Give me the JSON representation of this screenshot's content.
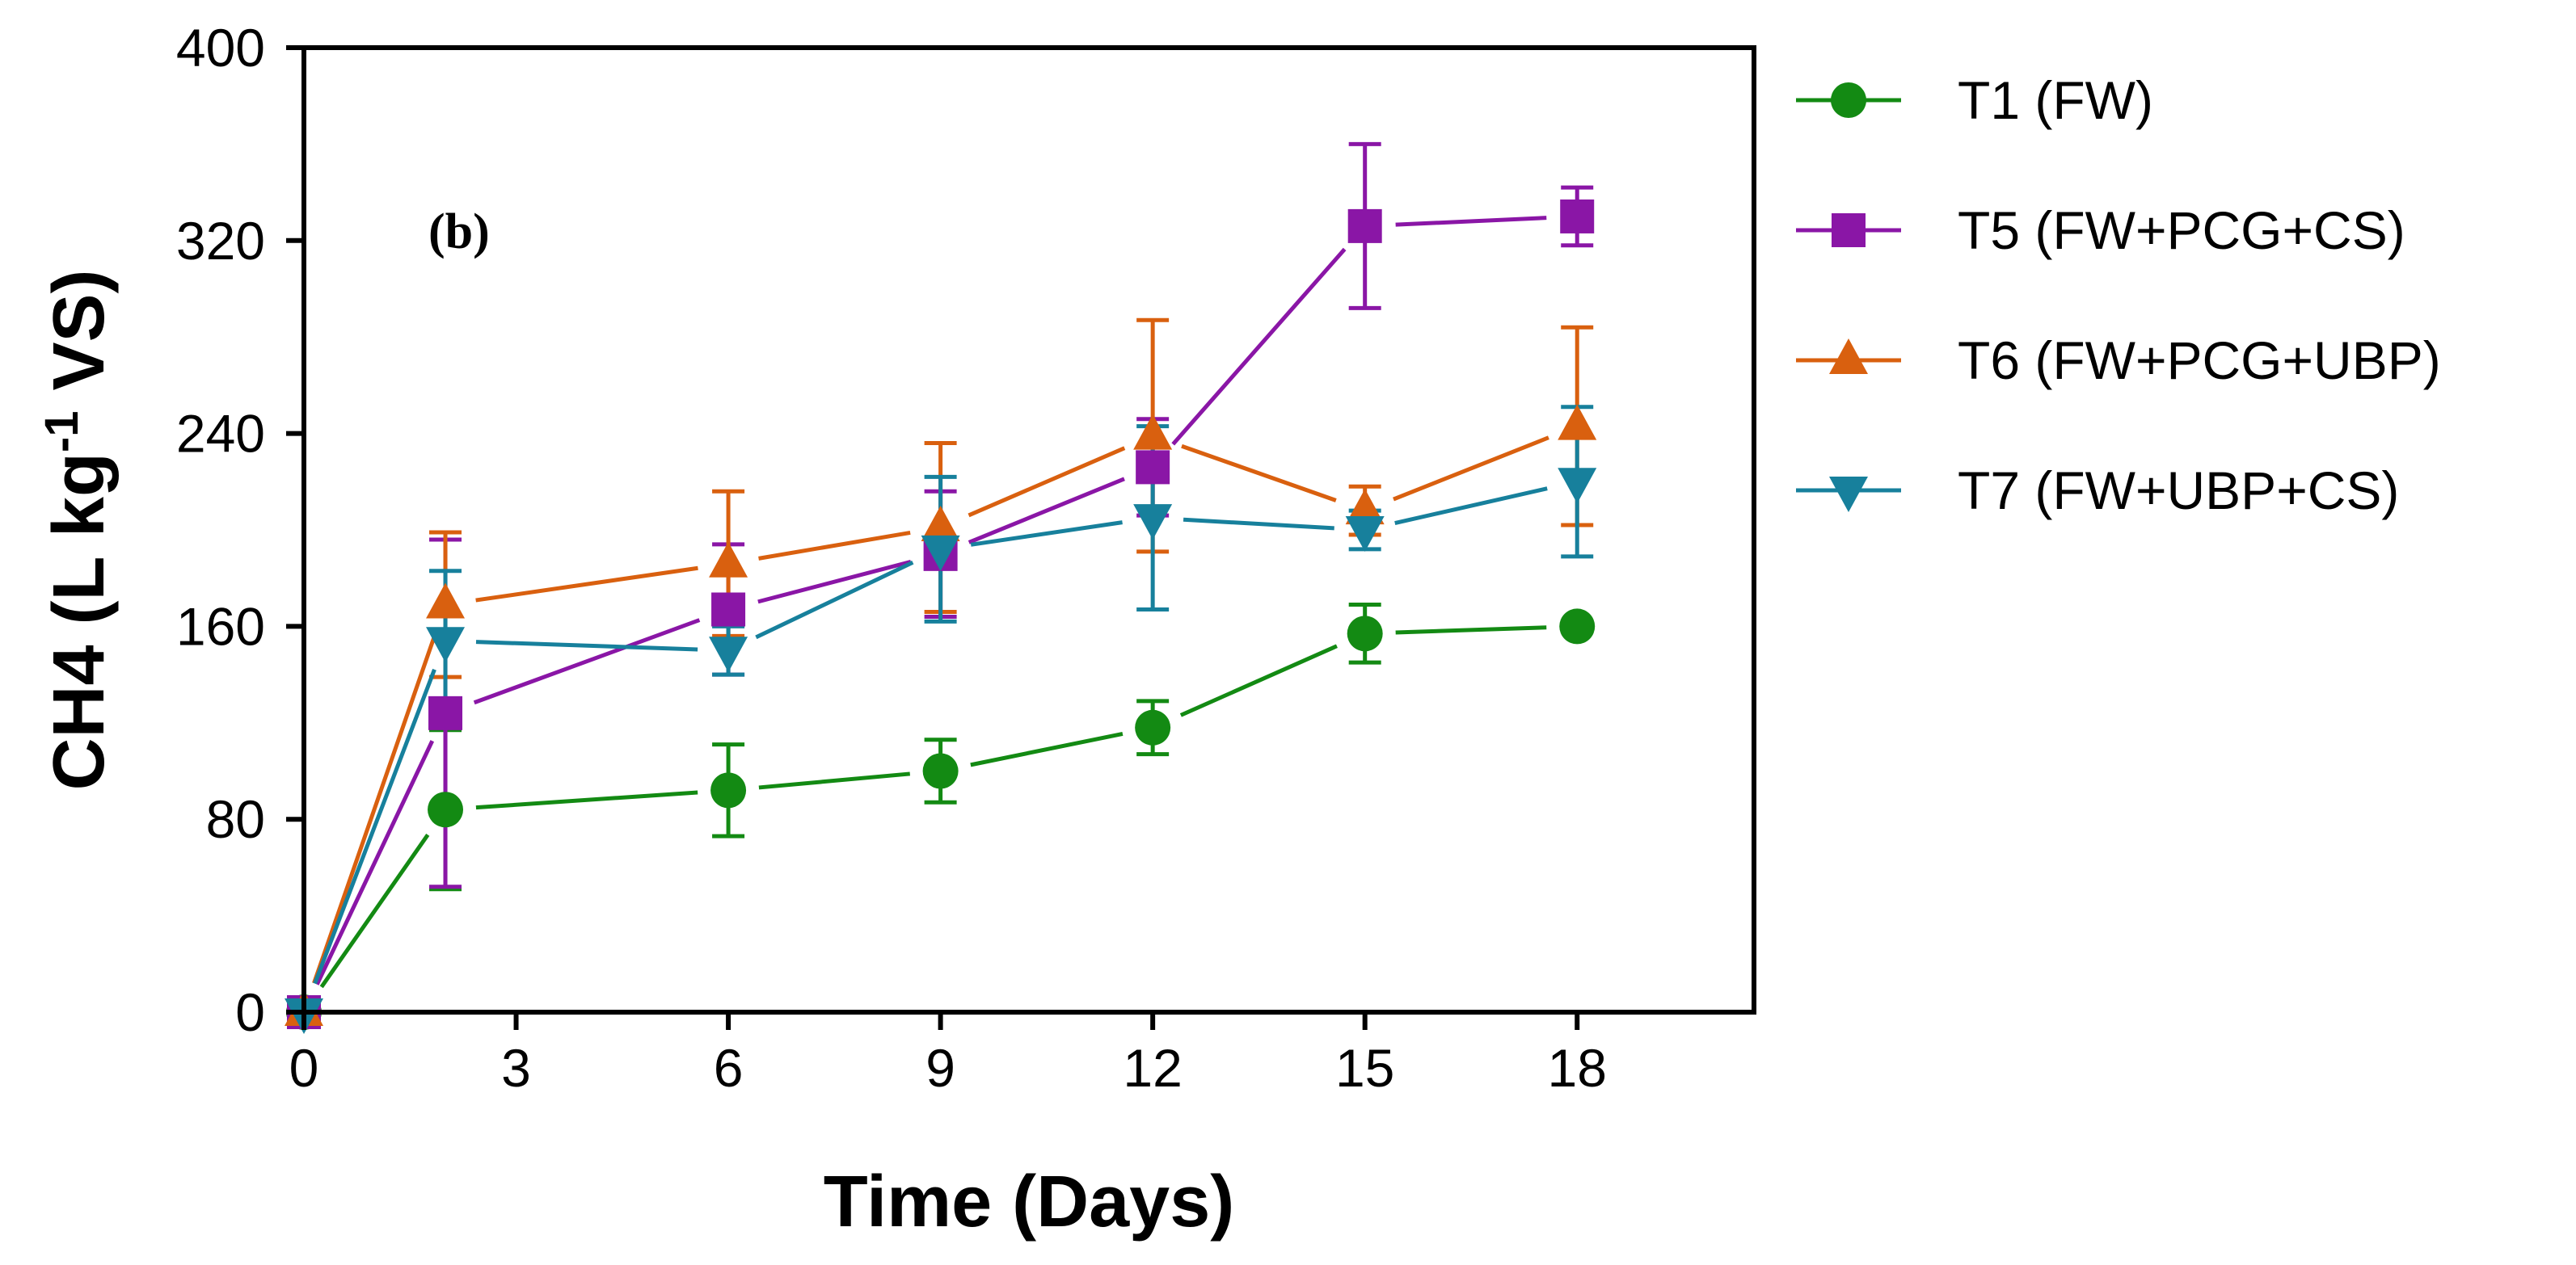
{
  "chart_data": {
    "type": "line",
    "annotation": "(b)",
    "xlabel": "Time (Days)",
    "ylabel": {
      "base": "CH4 (L kg",
      "superscript": "-1",
      "tail": " VS)"
    },
    "xlim": [
      0,
      20.5
    ],
    "ylim": [
      0,
      400
    ],
    "xticks": [
      0,
      3,
      6,
      9,
      12,
      15,
      18
    ],
    "yticks": [
      0,
      80,
      160,
      240,
      320,
      400
    ],
    "grid": false,
    "legend_position": "right",
    "series": [
      {
        "name": "T1 (FW)",
        "color": "#138a13",
        "marker": "circle",
        "x": [
          0,
          2,
          6,
          9,
          12,
          15,
          18
        ],
        "y": [
          0,
          84,
          92,
          100,
          118,
          157,
          160
        ],
        "err": [
          0,
          33,
          19,
          13,
          11,
          12,
          0
        ]
      },
      {
        "name": "T5 (FW+PCG+CS)",
        "color": "#8a16a6",
        "marker": "square",
        "x": [
          0,
          2,
          6,
          9,
          12,
          15,
          18
        ],
        "y": [
          0,
          124,
          167,
          190,
          226,
          326,
          330
        ],
        "err": [
          0,
          72,
          27,
          26,
          20,
          34,
          12
        ]
      },
      {
        "name": "T6 (FW+PCG+UBP)",
        "color": "#d9600f",
        "marker": "triangle-up",
        "x": [
          0,
          2,
          6,
          9,
          12,
          15,
          18
        ],
        "y": [
          0,
          169,
          186,
          201,
          239,
          208,
          243
        ],
        "err": [
          0,
          30,
          30,
          35,
          48,
          10,
          41
        ]
      },
      {
        "name": "T7 (FW+UBP+CS)",
        "color": "#17809c",
        "marker": "triangle-down",
        "x": [
          0,
          2,
          6,
          9,
          12,
          15,
          18
        ],
        "y": [
          0,
          154,
          150,
          192,
          205,
          200,
          220
        ],
        "err": [
          0,
          29,
          10,
          30,
          38,
          8,
          31
        ]
      }
    ]
  }
}
